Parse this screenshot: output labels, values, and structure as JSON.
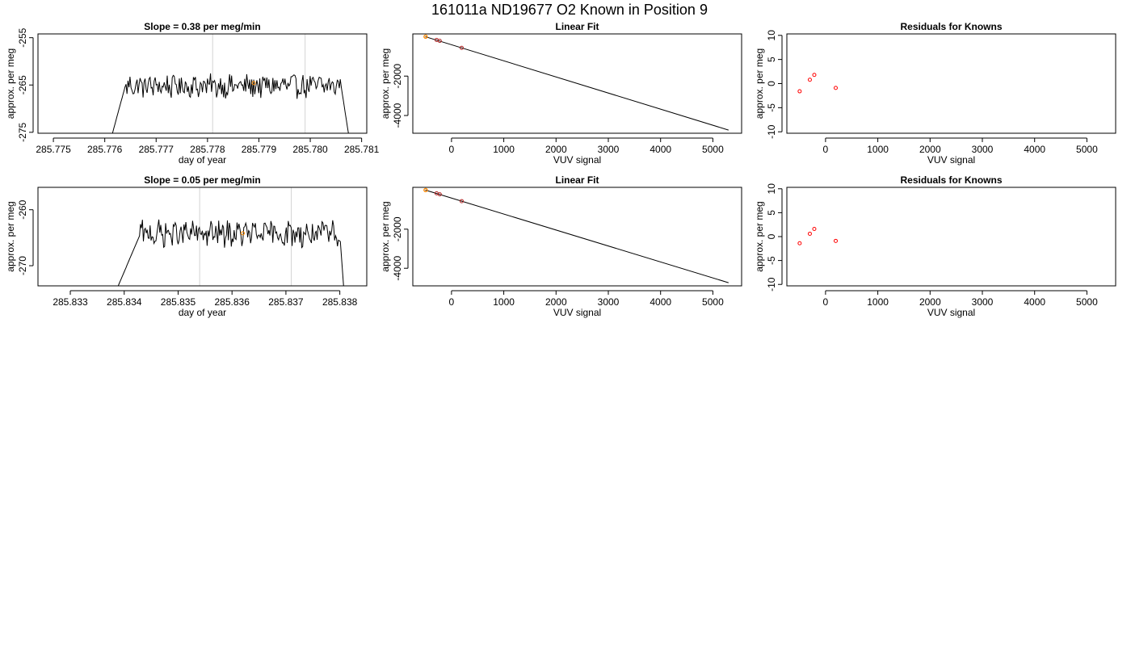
{
  "page": {
    "title": "161011a     ND19677   O2 Known in Position  9"
  },
  "chart_data": [
    {
      "id": "r1-timeseries",
      "type": "line",
      "title": "Slope =  0.38  per meg/min",
      "xlabel": "day of year",
      "ylabel": "approx. per meg",
      "xlim": [
        285.7747,
        285.7811
      ],
      "ylim": [
        -275.2,
        -254.2
      ],
      "xticks": [
        "285.775",
        "285.776",
        "285.777",
        "285.778",
        "285.779",
        "285.780",
        "285.781"
      ],
      "xtick_values": [
        285.775,
        285.776,
        285.777,
        285.778,
        285.779,
        285.78,
        285.781
      ],
      "yticks": [
        "-255",
        "-265",
        "-275"
      ],
      "ytick_values": [
        -255,
        -265,
        -275
      ],
      "vlines": [
        285.7781,
        285.7799
      ],
      "vline_color": "#d3d3d3",
      "series_color": "#000000",
      "signal": {
        "t_start": 285.7761,
        "t_rise_end": 285.7764,
        "t_fall_start": 285.7806,
        "t_end": 285.7808,
        "baseline": -265.2,
        "amplitude": 2.2
      },
      "marker": {
        "x": 285.7789,
        "y": -264.6,
        "color": "#ff8c00"
      }
    },
    {
      "id": "r1-linearfit",
      "type": "scatter",
      "title": "Linear Fit",
      "xlabel": "VUV signal",
      "ylabel": "approx. per meg",
      "xlim": [
        -740,
        5550
      ],
      "ylim": [
        -4900,
        140
      ],
      "xticks": [
        "0",
        "1000",
        "2000",
        "3000",
        "4000",
        "5000"
      ],
      "xtick_values": [
        0,
        1000,
        2000,
        3000,
        4000,
        5000
      ],
      "yticks": [
        "-2000",
        "-4000"
      ],
      "ytick_values": [
        -2000,
        -4000
      ],
      "fit_line": {
        "x": [
          -500,
          5300
        ],
        "y": [
          0,
          -4740
        ]
      },
      "points": {
        "x": [
          -495,
          -285,
          -225,
          195
        ],
        "y": [
          2,
          -165,
          -215,
          -565
        ],
        "color": "#b22222"
      },
      "highlight": {
        "x": -495,
        "y": 2,
        "color": "#ff8c00"
      }
    },
    {
      "id": "r1-residuals",
      "type": "scatter",
      "title": "Residuals for Knowns",
      "xlabel": "VUV signal",
      "ylabel": "approx. per meg",
      "xlim": [
        -740,
        5550
      ],
      "ylim": [
        -10.3,
        10.3
      ],
      "xticks": [
        "0",
        "1000",
        "2000",
        "3000",
        "4000",
        "5000"
      ],
      "xtick_values": [
        0,
        1000,
        2000,
        3000,
        4000,
        5000
      ],
      "yticks": [
        "-10",
        "-5",
        "0",
        "5",
        "10"
      ],
      "ytick_values": [
        -10,
        -5,
        0,
        5,
        10
      ],
      "points": {
        "x": [
          -495,
          -300,
          -215,
          195
        ],
        "y": [
          -1.6,
          0.8,
          1.8,
          -0.9
        ],
        "color": "#ff0000"
      }
    },
    {
      "id": "r2-timeseries",
      "type": "line",
      "title": "Slope =  0.05  per meg/min",
      "xlabel": "day of year",
      "ylabel": "approx. per meg",
      "xlim": [
        285.8324,
        285.8385
      ],
      "ylim": [
        -273.6,
        -256.0
      ],
      "xticks": [
        "285.833",
        "285.834",
        "285.835",
        "285.836",
        "285.837",
        "285.838"
      ],
      "xtick_values": [
        285.833,
        285.834,
        285.835,
        285.836,
        285.837,
        285.838
      ],
      "yticks": [
        "-260",
        "-270"
      ],
      "ytick_values": [
        -260,
        -270
      ],
      "vlines": [
        285.8354,
        285.8371
      ],
      "vline_color": "#d3d3d3",
      "series_color": "#000000",
      "signal": {
        "t_start": 285.8338,
        "t_rise_end": 285.8343,
        "t_fall_start": 285.838,
        "t_end": 285.8381,
        "baseline": -264.3,
        "amplitude": 2.0
      },
      "marker": {
        "x": 285.8362,
        "y": -264.2,
        "color": "#ff8c00"
      }
    },
    {
      "id": "r2-linearfit",
      "type": "scatter",
      "title": "Linear Fit",
      "xlabel": "VUV signal",
      "ylabel": "approx. per meg",
      "xlim": [
        -740,
        5550
      ],
      "ylim": [
        -4900,
        140
      ],
      "xticks": [
        "0",
        "1000",
        "2000",
        "3000",
        "4000",
        "5000"
      ],
      "xtick_values": [
        0,
        1000,
        2000,
        3000,
        4000,
        5000
      ],
      "yticks": [
        "-2000",
        "-4000"
      ],
      "ytick_values": [
        -2000,
        -4000
      ],
      "fit_line": {
        "x": [
          -500,
          5300
        ],
        "y": [
          0,
          -4740
        ]
      },
      "points": {
        "x": [
          -495,
          -285,
          -225,
          195
        ],
        "y": [
          2,
          -165,
          -215,
          -565
        ],
        "color": "#b22222"
      },
      "highlight": {
        "x": -495,
        "y": 2,
        "color": "#ff8c00"
      }
    },
    {
      "id": "r2-residuals",
      "type": "scatter",
      "title": "Residuals for Knowns",
      "xlabel": "VUV signal",
      "ylabel": "approx. per meg",
      "xlim": [
        -740,
        5550
      ],
      "ylim": [
        -10.3,
        10.3
      ],
      "xticks": [
        "0",
        "1000",
        "2000",
        "3000",
        "4000",
        "5000"
      ],
      "xtick_values": [
        0,
        1000,
        2000,
        3000,
        4000,
        5000
      ],
      "yticks": [
        "-10",
        "-5",
        "0",
        "5",
        "10"
      ],
      "ytick_values": [
        -10,
        -5,
        0,
        5,
        10
      ],
      "points": {
        "x": [
          -495,
          -300,
          -215,
          195
        ],
        "y": [
          -1.4,
          0.6,
          1.6,
          -0.9
        ],
        "color": "#ff0000"
      }
    }
  ]
}
